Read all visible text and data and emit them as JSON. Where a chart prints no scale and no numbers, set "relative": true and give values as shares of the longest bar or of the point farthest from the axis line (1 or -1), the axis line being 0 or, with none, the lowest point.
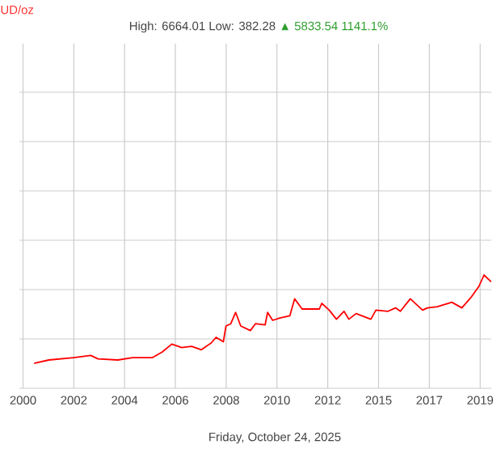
{
  "chart_data": {
    "type": "line",
    "title": "UD/oz",
    "subtitle": "High: 6664.01 Low: 382.28",
    "annotations": [
      "▲ 5833.54 1141.1%",
      "Friday, October 24, 2025"
    ],
    "relative": true,
    "grid": true,
    "marker": "none",
    "line_style": "solid",
    "xlim": [
      "2000-03-14",
      "2019-09-17"
    ],
    "xticks": [
      {
        "value": "2000-05-08",
        "label": "2000"
      },
      {
        "value": "2002-06-14",
        "label": "2002"
      },
      {
        "value": "2004-07-19",
        "label": "2004"
      },
      {
        "value": "2006-08-25",
        "label": "2006"
      },
      {
        "value": "2008-10-01",
        "label": "2008"
      },
      {
        "value": "2010-11-06",
        "label": "2010"
      },
      {
        "value": "2012-12-13",
        "label": "2012"
      },
      {
        "value": "2015-01-19",
        "label": "2015"
      },
      {
        "value": "2017-02-24",
        "label": "2017"
      },
      {
        "value": "2019-04-02",
        "label": "2019"
      }
    ],
    "series": [
      {
        "color": "#ff0000",
        "x": [
          "2000-10-23",
          "2001-06-03",
          "2002-06-10",
          "2003-02-25",
          "2003-06-14",
          "2004-04-09",
          "2004-11-17",
          "2005-09-09",
          "2006-02-06",
          "2006-07-02",
          "2006-11-28",
          "2007-04-28",
          "2007-09-20",
          "2008-02-17",
          "2008-05-01",
          "2008-08-19",
          "2008-09-28",
          "2008-12-10",
          "2009-02-21",
          "2009-05-09",
          "2009-10-01",
          "2009-12-17",
          "2010-05-12",
          "2010-06-18",
          "2010-09-03",
          "2010-12-20",
          "2011-05-19",
          "2011-07-31",
          "2011-11-21",
          "2012-08-08",
          "2012-09-13",
          "2013-01-04",
          "2013-04-23",
          "2013-08-15",
          "2013-10-27",
          "2014-02-14",
          "2014-09-24",
          "2014-12-10",
          "2015-06-11",
          "2015-10-02",
          "2015-12-14",
          "2016-05-12",
          "2016-11-14",
          "2017-01-26",
          "2017-06-25",
          "2018-01-30",
          "2018-06-29",
          "2018-11-25",
          "2019-03-14",
          "2019-05-30",
          "2019-09-16"
        ],
        "values": [
          0.22,
          0.25,
          0.27,
          0.29,
          0.26,
          0.25,
          0.27,
          0.27,
          0.32,
          0.39,
          0.36,
          0.37,
          0.34,
          0.4,
          0.45,
          0.41,
          0.55,
          0.57,
          0.67,
          0.55,
          0.51,
          0.57,
          0.56,
          0.67,
          0.6,
          0.62,
          0.64,
          0.79,
          0.7,
          0.7,
          0.75,
          0.69,
          0.61,
          0.68,
          0.61,
          0.66,
          0.61,
          0.69,
          0.68,
          0.71,
          0.68,
          0.79,
          0.69,
          0.71,
          0.72,
          0.76,
          0.71,
          0.81,
          0.9,
          1,
          0.94
        ]
      }
    ]
  }
}
